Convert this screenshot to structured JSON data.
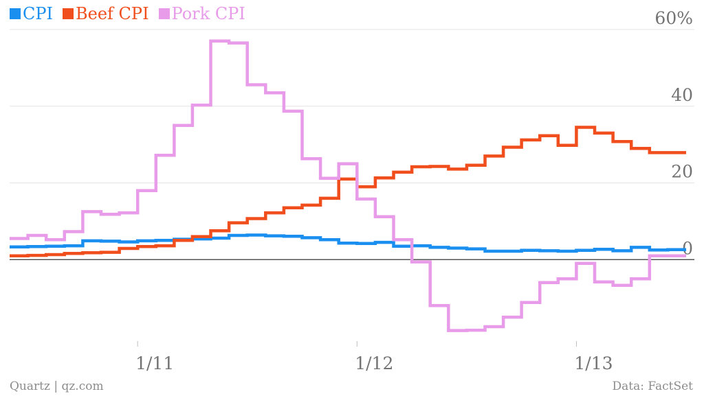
{
  "chart_data": {
    "type": "line",
    "step": true,
    "x": [
      "2010-06",
      "2010-07",
      "2010-08",
      "2010-09",
      "2010-10",
      "2010-11",
      "2010-12",
      "2011-01",
      "2011-02",
      "2011-03",
      "2011-04",
      "2011-05",
      "2011-06",
      "2011-07",
      "2011-08",
      "2011-09",
      "2011-10",
      "2011-11",
      "2011-12",
      "2012-01",
      "2012-02",
      "2012-03",
      "2012-04",
      "2012-05",
      "2012-06",
      "2012-07",
      "2012-08",
      "2012-09",
      "2012-10",
      "2012-11",
      "2012-12",
      "2013-01",
      "2013-02",
      "2013-03",
      "2013-04",
      "2013-05",
      "2013-06"
    ],
    "series": [
      {
        "name": "CPI",
        "color": "#1a8ff0",
        "values": [
          3.3,
          3.4,
          3.5,
          3.6,
          4.9,
          4.8,
          4.6,
          4.9,
          5.0,
          5.3,
          5.4,
          5.6,
          6.3,
          6.4,
          6.2,
          6.1,
          5.7,
          5.2,
          4.3,
          4.2,
          4.5,
          3.5,
          3.6,
          3.2,
          3.0,
          2.8,
          2.2,
          2.2,
          2.4,
          2.3,
          2.2,
          2.4,
          2.7,
          2.3,
          3.2,
          2.5,
          2.6
        ]
      },
      {
        "name": "Beef CPI",
        "color": "#f04e1c",
        "values": [
          1.0,
          1.1,
          1.3,
          1.6,
          1.8,
          1.9,
          2.9,
          3.4,
          3.6,
          5.0,
          6.0,
          7.5,
          9.6,
          10.7,
          12.2,
          13.5,
          14.2,
          16.0,
          21.0,
          19.0,
          21.3,
          22.8,
          24.2,
          24.3,
          23.6,
          24.6,
          27.0,
          29.3,
          31.2,
          32.3,
          29.8,
          34.5,
          33.0,
          30.8,
          29.0,
          27.9,
          27.9
        ]
      },
      {
        "name": "Pork CPI",
        "color": "#e79be8",
        "values": [
          5.5,
          6.3,
          5.2,
          7.3,
          12.5,
          11.8,
          12.2,
          18.0,
          27.2,
          35.0,
          40.3,
          57.0,
          56.5,
          45.6,
          43.5,
          38.7,
          26.3,
          21.2,
          25.0,
          15.8,
          11.2,
          5.2,
          -0.6,
          -12.0,
          -18.5,
          -18.4,
          -17.5,
          -15.0,
          -11.2,
          -6.0,
          -5.0,
          -1.0,
          -5.8,
          -6.7,
          -5.0,
          1.0,
          1.0
        ]
      }
    ],
    "x_ticks": [
      {
        "x": "2011-01",
        "label": "1/11"
      },
      {
        "x": "2012-01",
        "label": "1/12"
      },
      {
        "x": "2013-01",
        "label": "1/13"
      }
    ],
    "y_ticks": [
      {
        "value": 0,
        "label": "0"
      },
      {
        "value": 20,
        "label": "20"
      },
      {
        "value": 40,
        "label": "40"
      },
      {
        "value": 60,
        "label": "60%"
      }
    ],
    "ylim": [
      -20,
      60
    ],
    "grid": true,
    "legend": "top-left"
  },
  "footer": {
    "source_left": "Quartz | qz.com",
    "source_right": "Data: FactSet"
  },
  "colors": {
    "grid": "#e3e3e3",
    "zero": "#555555",
    "label": "#737373"
  }
}
